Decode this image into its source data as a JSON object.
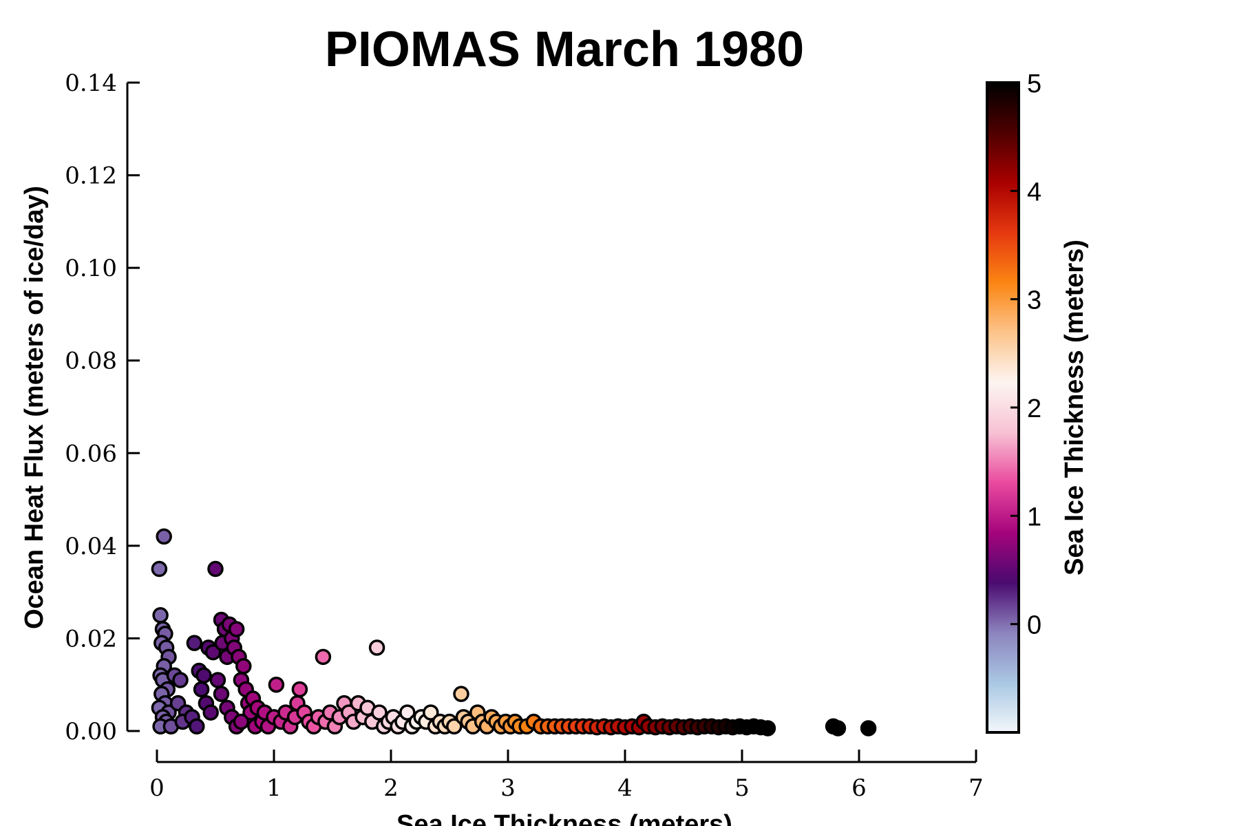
{
  "chart_data": {
    "type": "scatter",
    "title": "PIOMAS March 1980",
    "xlabel": "Sea Ice Thickness (meters)",
    "ylabel": "Ocean Heat Flux (meters of ice/day)",
    "xlim": [
      0,
      7
    ],
    "ylim": [
      0,
      0.14
    ],
    "x_ticks": [
      "0",
      "1",
      "2",
      "3",
      "4",
      "5",
      "6",
      "7"
    ],
    "y_ticks": [
      "0.00",
      "0.02",
      "0.04",
      "0.06",
      "0.08",
      "0.10",
      "0.12",
      "0.14"
    ],
    "grid": false,
    "colorbar": {
      "label": "Sea Ice Thickness (meters)",
      "range": [
        -1,
        5
      ],
      "ticks": [
        "0",
        "1",
        "2",
        "3",
        "4",
        "5"
      ],
      "colors": [
        "#f2f7fb",
        "#a9c7e3",
        "#8c83bd",
        "#4b0a70",
        "#a5047c",
        "#ea4b9f",
        "#f7c2d4",
        "#fdf5f2",
        "#fcc38a",
        "#fb8512",
        "#e63810",
        "#a80000",
        "#4e0000",
        "#000000"
      ]
    },
    "points": [
      [
        0.02,
        0.035
      ],
      [
        0.06,
        0.042
      ],
      [
        0.03,
        0.025
      ],
      [
        0.05,
        0.022
      ],
      [
        0.07,
        0.021
      ],
      [
        0.04,
        0.019
      ],
      [
        0.08,
        0.018
      ],
      [
        0.1,
        0.016
      ],
      [
        0.06,
        0.014
      ],
      [
        0.03,
        0.012
      ],
      [
        0.05,
        0.011
      ],
      [
        0.09,
        0.009
      ],
      [
        0.04,
        0.008
      ],
      [
        0.07,
        0.006
      ],
      [
        0.02,
        0.005
      ],
      [
        0.1,
        0.004
      ],
      [
        0.05,
        0.003
      ],
      [
        0.08,
        0.002
      ],
      [
        0.03,
        0.001
      ],
      [
        0.12,
        0.001
      ],
      [
        0.15,
        0.012
      ],
      [
        0.2,
        0.011
      ],
      [
        0.18,
        0.006
      ],
      [
        0.25,
        0.004
      ],
      [
        0.22,
        0.002
      ],
      [
        0.3,
        0.003
      ],
      [
        0.32,
        0.019
      ],
      [
        0.36,
        0.013
      ],
      [
        0.4,
        0.012
      ],
      [
        0.44,
        0.018
      ],
      [
        0.38,
        0.009
      ],
      [
        0.42,
        0.006
      ],
      [
        0.46,
        0.004
      ],
      [
        0.34,
        0.001
      ],
      [
        0.5,
        0.035
      ],
      [
        0.48,
        0.017
      ],
      [
        0.52,
        0.011
      ],
      [
        0.55,
        0.024
      ],
      [
        0.58,
        0.022
      ],
      [
        0.62,
        0.023
      ],
      [
        0.56,
        0.019
      ],
      [
        0.6,
        0.016
      ],
      [
        0.64,
        0.02
      ],
      [
        0.66,
        0.018
      ],
      [
        0.68,
        0.022
      ],
      [
        0.7,
        0.016
      ],
      [
        0.74,
        0.014
      ],
      [
        0.72,
        0.011
      ],
      [
        0.76,
        0.009
      ],
      [
        0.78,
        0.006
      ],
      [
        0.8,
        0.004
      ],
      [
        0.82,
        0.007
      ],
      [
        0.86,
        0.005
      ],
      [
        0.55,
        0.008
      ],
      [
        0.6,
        0.005
      ],
      [
        0.64,
        0.003
      ],
      [
        0.68,
        0.001
      ],
      [
        0.72,
        0.002
      ],
      [
        0.84,
        0.001
      ],
      [
        0.9,
        0.002
      ],
      [
        0.92,
        0.004
      ],
      [
        0.95,
        0.001
      ],
      [
        1.02,
        0.01
      ],
      [
        1.0,
        0.003
      ],
      [
        1.06,
        0.002
      ],
      [
        1.1,
        0.004
      ],
      [
        1.14,
        0.001
      ],
      [
        1.18,
        0.003
      ],
      [
        1.22,
        0.009
      ],
      [
        1.2,
        0.006
      ],
      [
        1.26,
        0.004
      ],
      [
        1.3,
        0.002
      ],
      [
        1.34,
        0.001
      ],
      [
        1.38,
        0.003
      ],
      [
        1.42,
        0.016
      ],
      [
        1.44,
        0.002
      ],
      [
        1.48,
        0.004
      ],
      [
        1.52,
        0.001
      ],
      [
        1.56,
        0.003
      ],
      [
        1.6,
        0.006
      ],
      [
        1.64,
        0.004
      ],
      [
        1.68,
        0.002
      ],
      [
        1.72,
        0.006
      ],
      [
        1.76,
        0.003
      ],
      [
        1.8,
        0.005
      ],
      [
        1.84,
        0.002
      ],
      [
        1.88,
        0.018
      ],
      [
        1.9,
        0.004
      ],
      [
        1.94,
        0.001
      ],
      [
        1.98,
        0.002
      ],
      [
        2.02,
        0.003
      ],
      [
        2.06,
        0.001
      ],
      [
        2.1,
        0.002
      ],
      [
        2.14,
        0.004
      ],
      [
        2.18,
        0.001
      ],
      [
        2.22,
        0.002
      ],
      [
        2.26,
        0.003
      ],
      [
        2.3,
        0.002
      ],
      [
        2.34,
        0.004
      ],
      [
        2.38,
        0.001
      ],
      [
        2.42,
        0.002
      ],
      [
        2.46,
        0.001
      ],
      [
        2.5,
        0.002
      ],
      [
        2.54,
        0.001
      ],
      [
        2.6,
        0.008
      ],
      [
        2.62,
        0.003
      ],
      [
        2.66,
        0.002
      ],
      [
        2.7,
        0.001
      ],
      [
        2.74,
        0.004
      ],
      [
        2.78,
        0.002
      ],
      [
        2.82,
        0.001
      ],
      [
        2.86,
        0.003
      ],
      [
        2.9,
        0.002
      ],
      [
        2.94,
        0.001
      ],
      [
        2.98,
        0.002
      ],
      [
        3.02,
        0.001
      ],
      [
        3.06,
        0.002
      ],
      [
        3.1,
        0.001
      ],
      [
        3.16,
        0.001
      ],
      [
        3.22,
        0.002
      ],
      [
        3.28,
        0.001
      ],
      [
        3.34,
        0.001
      ],
      [
        3.4,
        0.001
      ],
      [
        3.46,
        0.001
      ],
      [
        3.52,
        0.001
      ],
      [
        3.58,
        0.001
      ],
      [
        3.64,
        0.001
      ],
      [
        3.7,
        0.001
      ],
      [
        3.76,
        0.0008
      ],
      [
        3.82,
        0.001
      ],
      [
        3.88,
        0.0008
      ],
      [
        3.94,
        0.001
      ],
      [
        4.0,
        0.0008
      ],
      [
        4.06,
        0.001
      ],
      [
        4.12,
        0.0008
      ],
      [
        4.16,
        0.002
      ],
      [
        4.2,
        0.001
      ],
      [
        4.26,
        0.0008
      ],
      [
        4.32,
        0.001
      ],
      [
        4.38,
        0.0008
      ],
      [
        4.44,
        0.001
      ],
      [
        4.5,
        0.0008
      ],
      [
        4.56,
        0.001
      ],
      [
        4.62,
        0.0008
      ],
      [
        4.68,
        0.001
      ],
      [
        4.74,
        0.001
      ],
      [
        4.8,
        0.0008
      ],
      [
        4.86,
        0.001
      ],
      [
        4.92,
        0.0008
      ],
      [
        4.98,
        0.001
      ],
      [
        5.04,
        0.0008
      ],
      [
        5.1,
        0.001
      ],
      [
        5.16,
        0.0008
      ],
      [
        5.22,
        0.0006
      ],
      [
        5.78,
        0.001
      ],
      [
        5.82,
        0.0006
      ],
      [
        6.08,
        0.0006
      ]
    ]
  }
}
